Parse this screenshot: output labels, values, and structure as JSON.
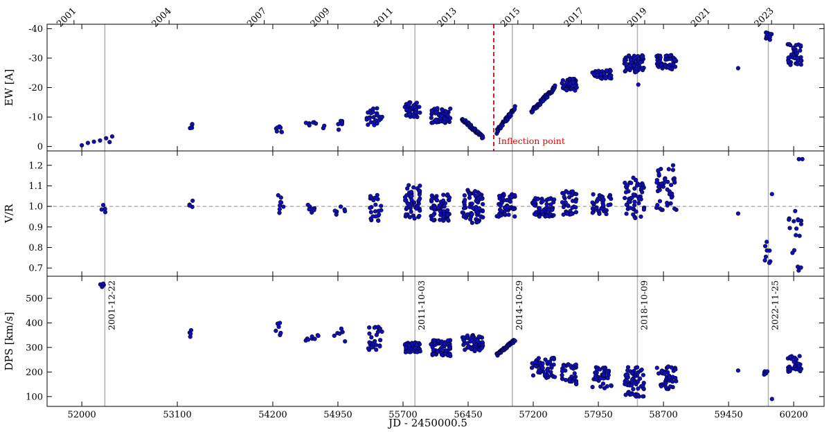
{
  "chart_data": {
    "type": "scatter",
    "xlabel": "JD - 2450000.5",
    "xlim": [
      51600,
      60550
    ],
    "x_ticks": [
      52000,
      53100,
      54200,
      54950,
      55700,
      56450,
      57200,
      57950,
      58700,
      59450,
      60200
    ],
    "top_year_ticks": [
      {
        "year": "2001",
        "jd": 51910
      },
      {
        "year": "2004",
        "jd": 53005
      },
      {
        "year": "2007",
        "jd": 54101
      },
      {
        "year": "2009",
        "jd": 54832
      },
      {
        "year": "2011",
        "jd": 55562
      },
      {
        "year": "2013",
        "jd": 56293
      },
      {
        "year": "2015",
        "jd": 57023
      },
      {
        "year": "2017",
        "jd": 57754
      },
      {
        "year": "2019",
        "jd": 58484
      },
      {
        "year": "2021",
        "jd": 59215
      },
      {
        "year": "2023",
        "jd": 59945
      }
    ],
    "marker_color": "#1010b0",
    "marker_edge": "#000033",
    "vertical_markers": [
      {
        "jd": 52265,
        "label": "2001-12-22"
      },
      {
        "jd": 55837,
        "label": "2011-10-03"
      },
      {
        "jd": 56959,
        "label": "2014-10-29"
      },
      {
        "jd": 58400,
        "label": "2018-10-09"
      },
      {
        "jd": 59908,
        "label": "2022-11-25"
      }
    ],
    "inflection": {
      "jd": 56745,
      "label": "Inflection point",
      "color": "#e00000"
    },
    "panels": [
      {
        "id": "ew",
        "ylabel": "EW [A]",
        "ylim": [
          1.5,
          -41.5
        ],
        "yticks": [
          0,
          -10,
          -20,
          -30,
          -40
        ],
        "inverted": true,
        "ref_line": null,
        "groups": [
          {
            "x": [
              52000,
              52350
            ],
            "y": [
              -3.5,
              -0.5
            ],
            "n": 6,
            "trend": "rising"
          },
          {
            "x": [
              53240,
              53280
            ],
            "y": [
              -8,
              -6
            ],
            "n": 4
          },
          {
            "x": [
              54230,
              54310
            ],
            "y": [
              -7.5,
              -4.5
            ],
            "n": 7
          },
          {
            "x": [
              54560,
              54700
            ],
            "y": [
              -8.5,
              -7
            ],
            "n": 7
          },
          {
            "x": [
              54760,
              54800
            ],
            "y": [
              -7.5,
              -6
            ],
            "n": 2
          },
          {
            "x": [
              54900,
              55040
            ],
            "y": [
              -9,
              -5.5
            ],
            "n": 6
          },
          {
            "x": [
              55280,
              55460
            ],
            "y": [
              -13,
              -7
            ],
            "n": 25
          },
          {
            "x": [
              55720,
              55900
            ],
            "y": [
              -15,
              -10
            ],
            "n": 45
          },
          {
            "x": [
              56020,
              56250
            ],
            "y": [
              -13,
              -8
            ],
            "n": 60
          },
          {
            "x": [
              56380,
              56620
            ],
            "y": [
              -9.5,
              -3
            ],
            "n": 55,
            "trend": "falling"
          },
          {
            "x": [
              56780,
              56990
            ],
            "y": [
              -13,
              -5
            ],
            "n": 45,
            "trend": "rising"
          },
          {
            "x": [
              57180,
              57450
            ],
            "y": [
              -20,
              -12
            ],
            "n": 60,
            "trend": "rising"
          },
          {
            "x": [
              57530,
              57700
            ],
            "y": [
              -23,
              -19
            ],
            "n": 40
          },
          {
            "x": [
              57880,
              58100
            ],
            "y": [
              -26,
              -23
            ],
            "n": 40
          },
          {
            "x": [
              58250,
              58480
            ],
            "y": [
              -31,
              -25
            ],
            "n": 60
          },
          {
            "x": [
              58620,
              58850
            ],
            "y": [
              -31,
              -26
            ],
            "n": 50
          },
          {
            "x": [
              59560,
              59560
            ],
            "y": [
              -27,
              -26
            ],
            "n": 1
          },
          {
            "x": [
              59880,
              59950
            ],
            "y": [
              -39,
              -36
            ],
            "n": 12
          },
          {
            "x": [
              60130,
              60290
            ],
            "y": [
              -35,
              -27.5
            ],
            "n": 40
          }
        ],
        "points": [
          [
            52320,
            -1.5
          ],
          [
            58410,
            -21
          ],
          [
            57700,
            -20
          ],
          [
            56930,
            -11
          ]
        ]
      },
      {
        "id": "vr",
        "ylabel": "V/R",
        "ylim": [
          0.66,
          1.27
        ],
        "yticks": [
          0.7,
          0.8,
          0.9,
          1.0,
          1.1,
          1.2
        ],
        "inverted": false,
        "ref_line": 1.0,
        "groups": [
          {
            "x": [
              52210,
              52300
            ],
            "y": [
              0.97,
              1.01
            ],
            "n": 4
          },
          {
            "x": [
              53240,
              53280
            ],
            "y": [
              0.96,
              1.04
            ],
            "n": 4
          },
          {
            "x": [
              54230,
              54330
            ],
            "y": [
              0.96,
              1.07
            ],
            "n": 8
          },
          {
            "x": [
              54580,
              54700
            ],
            "y": [
              0.96,
              1.01
            ],
            "n": 7
          },
          {
            "x": [
              54900,
              55040
            ],
            "y": [
              0.96,
              1.01
            ],
            "n": 6
          },
          {
            "x": [
              55320,
              55460
            ],
            "y": [
              0.92,
              1.06
            ],
            "n": 25
          },
          {
            "x": [
              55720,
              55900
            ],
            "y": [
              0.94,
              1.11
            ],
            "n": 50
          },
          {
            "x": [
              56020,
              56250
            ],
            "y": [
              0.93,
              1.06
            ],
            "n": 60
          },
          {
            "x": [
              56380,
              56620
            ],
            "y": [
              0.92,
              1.08
            ],
            "n": 70
          },
          {
            "x": [
              56780,
              56990
            ],
            "y": [
              0.95,
              1.07
            ],
            "n": 55
          },
          {
            "x": [
              57180,
              57450
            ],
            "y": [
              0.95,
              1.04
            ],
            "n": 60
          },
          {
            "x": [
              57530,
              57700
            ],
            "y": [
              0.96,
              1.08
            ],
            "n": 35
          },
          {
            "x": [
              57880,
              58100
            ],
            "y": [
              0.96,
              1.06
            ],
            "n": 40
          },
          {
            "x": [
              58250,
              58480
            ],
            "y": [
              0.94,
              1.14
            ],
            "n": 55
          },
          {
            "x": [
              58620,
              58850
            ],
            "y": [
              0.96,
              1.21
            ],
            "n": 45
          },
          {
            "x": [
              59560,
              59560
            ],
            "y": [
              0.96,
              0.97
            ],
            "n": 1
          },
          {
            "x": [
              59860,
              59940
            ],
            "y": [
              0.72,
              0.86
            ],
            "n": 8
          },
          {
            "x": [
              60130,
              60290
            ],
            "y": [
              0.68,
              0.98
            ],
            "n": 16
          }
        ],
        "points": [
          [
            59950,
            1.06
          ],
          [
            60260,
            1.23
          ],
          [
            60300,
            1.23
          ],
          [
            60225,
            0.86
          ]
        ]
      },
      {
        "id": "dps",
        "ylabel": "DPS [km/s]",
        "ylim": [
          60,
          590
        ],
        "yticks": [
          100,
          200,
          300,
          400,
          500
        ],
        "inverted": false,
        "ref_line": null,
        "groups": [
          {
            "x": [
              52200,
              52320
            ],
            "y": [
              540,
              565
            ],
            "n": 4
          },
          {
            "x": [
              53240,
              53290
            ],
            "y": [
              340,
              380
            ],
            "n": 4
          },
          {
            "x": [
              54230,
              54330
            ],
            "y": [
              350,
              400
            ],
            "n": 6
          },
          {
            "x": [
              54580,
              54760
            ],
            "y": [
              310,
              350
            ],
            "n": 8
          },
          {
            "x": [
              54900,
              55040
            ],
            "y": [
              310,
              380
            ],
            "n": 7
          },
          {
            "x": [
              55300,
              55460
            ],
            "y": [
              290,
              385
            ],
            "n": 25
          },
          {
            "x": [
              55720,
              55900
            ],
            "y": [
              280,
              320
            ],
            "n": 50
          },
          {
            "x": [
              56020,
              56250
            ],
            "y": [
              265,
              330
            ],
            "n": 60
          },
          {
            "x": [
              56380,
              56620
            ],
            "y": [
              285,
              350
            ],
            "n": 65
          },
          {
            "x": [
              56780,
              56990
            ],
            "y": [
              270,
              330
            ],
            "n": 50,
            "trend": "falling"
          },
          {
            "x": [
              57180,
              57450
            ],
            "y": [
              175,
              260
            ],
            "n": 55
          },
          {
            "x": [
              57530,
              57700
            ],
            "y": [
              150,
              235
            ],
            "n": 35
          },
          {
            "x": [
              57880,
              58100
            ],
            "y": [
              130,
              220
            ],
            "n": 40
          },
          {
            "x": [
              58250,
              58480
            ],
            "y": [
              100,
              220
            ],
            "n": 60
          },
          {
            "x": [
              58620,
              58850
            ],
            "y": [
              130,
              225
            ],
            "n": 40
          },
          {
            "x": [
              59560,
              59560
            ],
            "y": [
              205,
              210
            ],
            "n": 1
          },
          {
            "x": [
              59860,
              59940
            ],
            "y": [
              160,
              205
            ],
            "n": 6
          },
          {
            "x": [
              60130,
              60290
            ],
            "y": [
              200,
              265
            ],
            "n": 30
          }
        ],
        "points": [
          [
            59950,
            90
          ]
        ]
      }
    ]
  }
}
